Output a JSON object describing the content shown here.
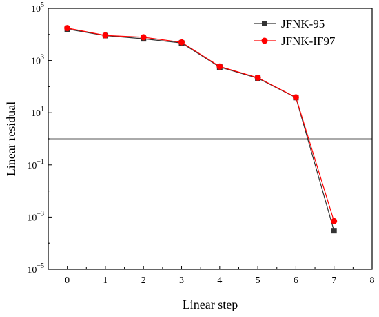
{
  "chart_data": {
    "type": "line",
    "xlabel": "Linear step",
    "ylabel": "Linear residual",
    "x_ticks": [
      "0",
      "1",
      "2",
      "3",
      "4",
      "5",
      "6",
      "7",
      "8"
    ],
    "x_range": [
      -0.5,
      8
    ],
    "y_scale": "log",
    "y_range": [
      1e-05,
      100000
    ],
    "y_ticks": [
      {
        "value": 1e-05,
        "base": "10",
        "exp": "−5"
      },
      {
        "value": 0.001,
        "base": "10",
        "exp": "−3"
      },
      {
        "value": 0.1,
        "base": "10",
        "exp": "−1"
      },
      {
        "value": 10,
        "base": "10",
        "exp": "1"
      },
      {
        "value": 1000,
        "base": "10",
        "exp": "3"
      },
      {
        "value": 100000,
        "base": "10",
        "exp": "5"
      }
    ],
    "reference_line": {
      "y": 1
    },
    "legend_position": "top-right",
    "series": [
      {
        "name": "JFNK-95",
        "color": "#333333",
        "marker": "square",
        "x": [
          0,
          1,
          2,
          3,
          4,
          5,
          6,
          7
        ],
        "y": [
          16000,
          9000,
          6800,
          4700,
          560,
          210,
          38,
          0.0003
        ]
      },
      {
        "name": "JFNK-IF97",
        "color": "#ff0000",
        "marker": "circle",
        "x": [
          0,
          1,
          2,
          3,
          4,
          5,
          6,
          7
        ],
        "y": [
          17500,
          9200,
          7800,
          5000,
          590,
          220,
          39,
          0.0007
        ]
      }
    ]
  }
}
